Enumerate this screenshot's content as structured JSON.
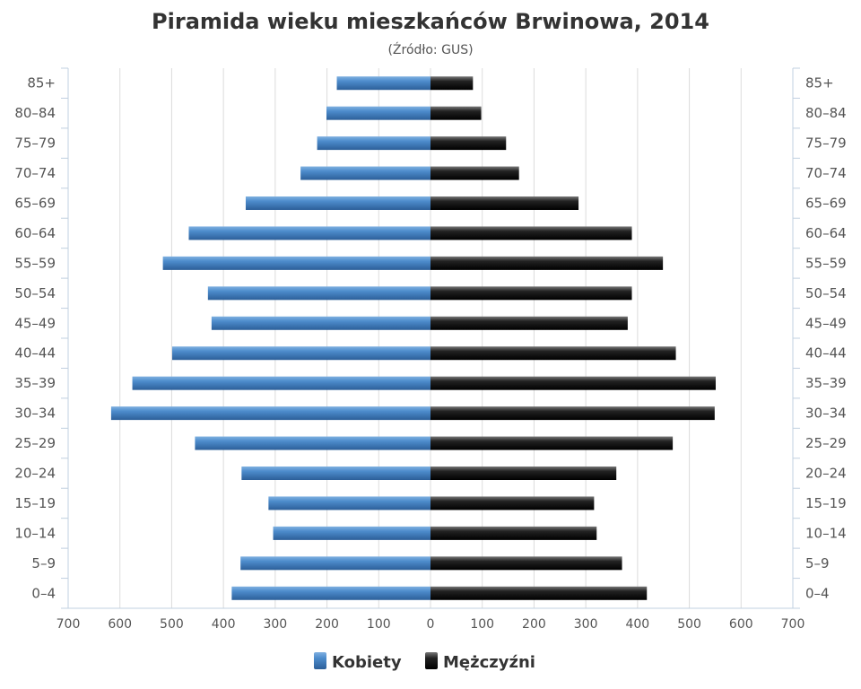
{
  "chart_data": {
    "type": "bar",
    "orientation": "horizontal-pyramid",
    "title": "Piramida wieku mieszkańców Brwinowa, 2014",
    "subtitle": "(Źródło: GUS)",
    "categories": [
      "0–4",
      "5–9",
      "10–14",
      "15–19",
      "20–24",
      "25–29",
      "30–34",
      "35–39",
      "40–44",
      "45–49",
      "50–54",
      "55–59",
      "60–64",
      "65–69",
      "70–74",
      "75–79",
      "80–84",
      "85+"
    ],
    "series": [
      {
        "name": "Kobiety",
        "color": "#3d7ab8",
        "side": "left",
        "values": [
          384,
          367,
          304,
          313,
          365,
          455,
          617,
          576,
          499,
          423,
          430,
          517,
          467,
          357,
          251,
          219,
          201,
          181
        ]
      },
      {
        "name": "Mężczyźni",
        "color": "#1a1a1a",
        "side": "right",
        "values": [
          418,
          370,
          321,
          316,
          359,
          468,
          549,
          551,
          474,
          381,
          389,
          449,
          389,
          286,
          171,
          146,
          98,
          82
        ]
      }
    ],
    "x_ticks": [
      "700",
      "600",
      "500",
      "400",
      "300",
      "200",
      "100",
      "0",
      "100",
      "200",
      "300",
      "400",
      "500",
      "600",
      "700"
    ],
    "xlim": [
      -700,
      700
    ],
    "grid": true,
    "legend": "bottom-center"
  }
}
